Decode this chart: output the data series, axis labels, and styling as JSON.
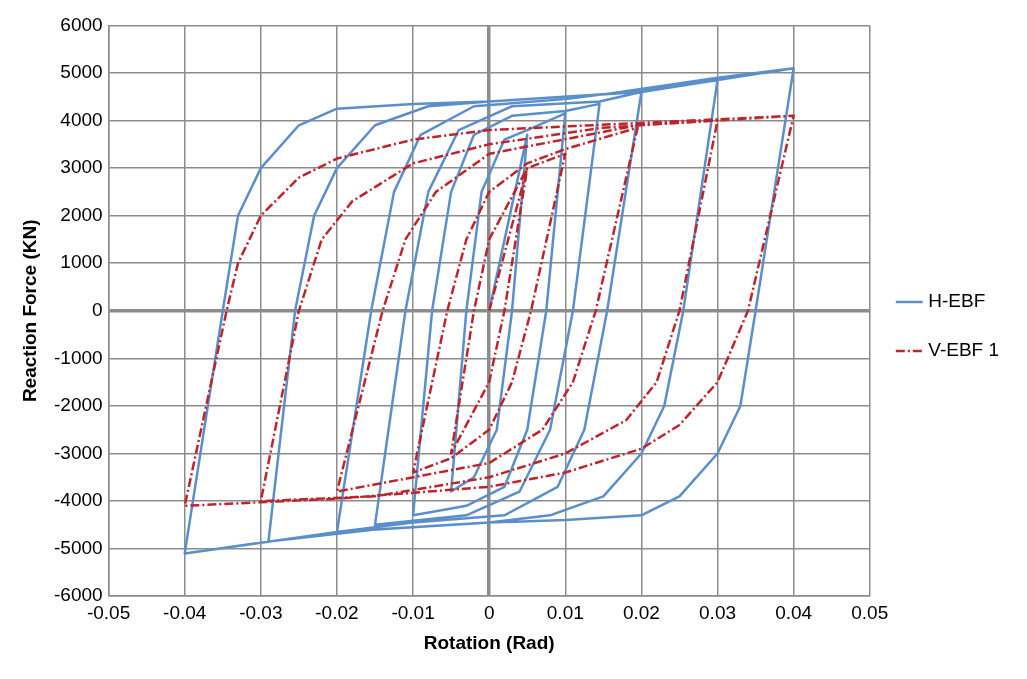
{
  "chart_data": {
    "type": "line",
    "xlabel": "Rotation (Rad)",
    "ylabel": "Reaction Force (KN)",
    "xlim": [
      -0.05,
      0.05
    ],
    "xticks": [
      -0.05,
      -0.04,
      -0.03,
      -0.02,
      -0.01,
      0,
      0.01,
      0.02,
      0.03,
      0.04,
      0.05
    ],
    "ylim": [
      -6000,
      6000
    ],
    "yticks": [
      -6000,
      -5000,
      -4000,
      -3000,
      -2000,
      -1000,
      0,
      1000,
      2000,
      3000,
      4000,
      5000,
      6000
    ],
    "grid": true,
    "legend": "right",
    "marker": "none",
    "series": [
      {
        "name": "H-EBF",
        "color": "#5b8fcc",
        "line_style": "solid",
        "x": [
          0,
          0.005,
          0.003,
          0.001,
          -0.002,
          -0.005,
          -0.003,
          -0.001,
          0.002,
          0.005,
          0.01,
          0.0075,
          0.005,
          0.002,
          -0.003,
          -0.01,
          -0.0075,
          -0.005,
          -0.002,
          0.003,
          0.01,
          0.0145,
          0.011,
          0.008,
          0.004,
          -0.003,
          -0.015,
          -0.011,
          -0.008,
          -0.004,
          0.003,
          0.0145,
          0.02,
          0.0155,
          0.0125,
          0.009,
          0.002,
          -0.01,
          -0.02,
          -0.0155,
          -0.0125,
          -0.009,
          -0.002,
          0.01,
          0.02,
          0.03,
          0.0255,
          0.023,
          0.02,
          0.015,
          0.008,
          0,
          -0.015,
          -0.029,
          -0.0255,
          -0.023,
          -0.02,
          -0.015,
          -0.008,
          0,
          0.015,
          0.03,
          0.04,
          0.035,
          0.033,
          0.03,
          0.025,
          0.02,
          0.01,
          0,
          -0.02,
          -0.04,
          -0.035,
          -0.033,
          -0.03,
          -0.025,
          -0.02,
          -0.01,
          0,
          0.02,
          0.04
        ],
        "values": [
          0,
          3700,
          0,
          -2500,
          -3500,
          -3800,
          0,
          2500,
          3600,
          3800,
          4150,
          0,
          -2500,
          -3700,
          -4100,
          -4300,
          0,
          2500,
          3700,
          4100,
          4200,
          4350,
          0,
          -2500,
          -3800,
          -4300,
          -4500,
          0,
          2500,
          3800,
          4300,
          4400,
          4600,
          0,
          -2500,
          -3700,
          -4300,
          -4450,
          -4650,
          0,
          2500,
          3700,
          4300,
          4450,
          4650,
          4850,
          0,
          -2000,
          -3000,
          -3900,
          -4300,
          -4450,
          -4600,
          -4850,
          0,
          2000,
          3000,
          3900,
          4300,
          4400,
          4550,
          4900,
          5100,
          0,
          -2000,
          -3000,
          -3900,
          -4300,
          -4400,
          -4450,
          -4650,
          -5100,
          0,
          2000,
          3000,
          3900,
          4250,
          4350,
          4400,
          4600,
          5100
        ]
      },
      {
        "name": "V-EBF 1",
        "color": "#c0242b",
        "line_style": "dashed",
        "x": [
          0,
          0.005,
          0.002,
          0,
          -0.005,
          -0.002,
          0,
          0.005,
          0.01,
          0.0055,
          0.003,
          0,
          -0.005,
          -0.01,
          -0.0055,
          -0.003,
          0,
          0.005,
          0.01,
          0.0195,
          0.014,
          0.011,
          0.007,
          0,
          -0.02,
          -0.014,
          -0.011,
          -0.007,
          0,
          0.0195,
          0.03,
          0.025,
          0.022,
          0.018,
          0.01,
          0,
          -0.015,
          -0.03,
          -0.025,
          -0.022,
          -0.018,
          -0.01,
          0,
          0.015,
          0.03,
          0.04,
          0.034,
          0.03,
          0.025,
          0.02,
          0.01,
          0,
          -0.02,
          -0.04,
          -0.0345,
          -0.033,
          -0.03,
          -0.025,
          -0.02,
          -0.01,
          0,
          0.02,
          0.04
        ],
        "values": [
          0,
          3000,
          0,
          -1500,
          -3000,
          0,
          1500,
          3000,
          3300,
          0,
          -1500,
          -2500,
          -3100,
          -3400,
          0,
          1500,
          2500,
          3100,
          3400,
          3850,
          0,
          -1500,
          -2500,
          -3200,
          -3800,
          0,
          1500,
          2500,
          3300,
          3900,
          4000,
          0,
          -1500,
          -2300,
          -3000,
          -3500,
          -3900,
          -4000,
          0,
          1500,
          2300,
          3100,
          3500,
          3850,
          4000,
          4100,
          0,
          -1500,
          -2400,
          -2900,
          -3400,
          -3700,
          -3950,
          -4100,
          0,
          1000,
          2000,
          2800,
          3200,
          3600,
          3800,
          3950,
          4100
        ]
      }
    ]
  }
}
